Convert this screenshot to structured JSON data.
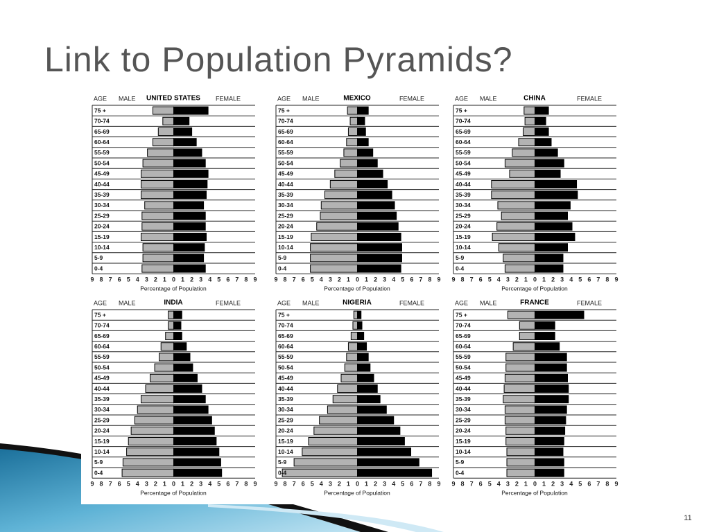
{
  "title": "Link to Population Pyramids?",
  "page_number": "11",
  "chart_data": [
    {
      "type": "bar",
      "title": "UNITED STATES",
      "category_label": "AGE",
      "x_label": "Percentage of Population",
      "categories": [
        "75 +",
        "70-74",
        "65-69",
        "60-64",
        "55-59",
        "50-54",
        "45-49",
        "40-44",
        "35-39",
        "30-34",
        "25-29",
        "20-24",
        "15-19",
        "10-14",
        "5-9",
        "0-4"
      ],
      "series": [
        {
          "name": "MALE",
          "color": "#b3b3b3",
          "values": [
            2.3,
            1.2,
            1.7,
            2.3,
            2.9,
            3.4,
            3.6,
            3.6,
            3.6,
            3.2,
            3.5,
            3.5,
            3.6,
            3.4,
            3.4,
            3.5
          ]
        },
        {
          "name": "FEMALE",
          "color": "#000000",
          "values": [
            3.8,
            1.7,
            2.0,
            2.5,
            3.1,
            3.5,
            3.8,
            3.7,
            3.6,
            3.3,
            3.5,
            3.5,
            3.6,
            3.4,
            3.3,
            3.5
          ]
        }
      ],
      "xlim": [
        -9,
        9
      ],
      "xticks": [
        {
          "value": -9,
          "label": "9"
        },
        {
          "value": -8,
          "label": "8"
        },
        {
          "value": -7,
          "label": "7"
        },
        {
          "value": -6,
          "label": "6"
        },
        {
          "value": -5,
          "label": "5"
        },
        {
          "value": -4,
          "label": "4"
        },
        {
          "value": -3,
          "label": "3"
        },
        {
          "value": -2,
          "label": "2"
        },
        {
          "value": -1,
          "label": "1"
        },
        0,
        1,
        2,
        3,
        4,
        5,
        6,
        7,
        8,
        9
      ]
    },
    {
      "type": "bar",
      "title": "MEXICO",
      "category_label": "AGE",
      "x_label": "Percentage of Population",
      "categories": [
        "75 +",
        "70-74",
        "65-69",
        "60-64",
        "55-59",
        "50-54",
        "45-49",
        "40-44",
        "35-39",
        "30-34",
        "25-29",
        "20-24",
        "15-19",
        "10-14",
        "5-9",
        "0-4"
      ],
      "series": [
        {
          "name": "MALE",
          "color": "#b3b3b3",
          "values": [
            1.1,
            0.8,
            1.0,
            1.2,
            1.5,
            1.9,
            2.5,
            3.0,
            3.6,
            4.0,
            4.1,
            4.5,
            5.1,
            5.2,
            5.2,
            5.2
          ]
        },
        {
          "name": "FEMALE",
          "color": "#000000",
          "values": [
            1.2,
            0.8,
            0.9,
            1.2,
            1.7,
            2.2,
            2.8,
            3.3,
            3.8,
            4.1,
            4.3,
            4.5,
            4.8,
            4.9,
            4.9,
            4.8
          ]
        }
      ],
      "xlim": [
        -9,
        9
      ],
      "xticks": [
        {
          "value": -9,
          "label": "9"
        },
        {
          "value": -8,
          "label": "8"
        },
        {
          "value": -7,
          "label": "7"
        },
        {
          "value": -6,
          "label": "6"
        },
        {
          "value": -5,
          "label": "5"
        },
        {
          "value": -4,
          "label": "4"
        },
        {
          "value": -3,
          "label": "3"
        },
        {
          "value": -2,
          "label": "2"
        },
        {
          "value": -1,
          "label": "1"
        },
        0,
        1,
        2,
        3,
        4,
        5,
        6,
        7,
        8,
        9
      ]
    },
    {
      "type": "bar",
      "title": "CHINA",
      "category_label": "AGE",
      "x_label": "Percentage of Population",
      "categories": [
        "75 +",
        "70-74",
        "65-69",
        "60-64",
        "55-59",
        "50-54",
        "45-49",
        "40-44",
        "35-39",
        "30-34",
        "25-29",
        "20-24",
        "15-19",
        "10-14",
        "5-9",
        "0-4"
      ],
      "series": [
        {
          "name": "MALE",
          "color": "#b3b3b3",
          "values": [
            1.2,
            1.1,
            1.3,
            1.8,
            2.5,
            3.3,
            2.8,
            4.8,
            4.8,
            4.1,
            3.7,
            4.2,
            4.7,
            4.0,
            3.5,
            3.3
          ]
        },
        {
          "name": "FEMALE",
          "color": "#000000",
          "values": [
            1.5,
            1.2,
            1.5,
            1.8,
            2.5,
            3.2,
            2.8,
            4.6,
            4.7,
            3.9,
            3.6,
            4.1,
            4.4,
            3.6,
            3.1,
            3.1
          ]
        }
      ],
      "xlim": [
        -9,
        9
      ],
      "xticks": [
        {
          "value": -9,
          "label": "9"
        },
        {
          "value": -8,
          "label": "8"
        },
        {
          "value": -7,
          "label": "7"
        },
        {
          "value": -6,
          "label": "6"
        },
        {
          "value": -5,
          "label": "5"
        },
        {
          "value": -4,
          "label": "4"
        },
        {
          "value": -3,
          "label": "3"
        },
        {
          "value": -2,
          "label": "2"
        },
        {
          "value": -1,
          "label": "1"
        },
        0,
        1,
        2,
        3,
        4,
        5,
        6,
        7,
        8,
        9
      ]
    },
    {
      "type": "bar",
      "title": "INDIA",
      "category_label": "AGE",
      "x_label": "Percentage of Population",
      "categories": [
        "75 +",
        "70-74",
        "65-69",
        "60-64",
        "55-59",
        "50-54",
        "45-49",
        "40-44",
        "35-39",
        "30-34",
        "25-29",
        "20-24",
        "15-19",
        "10-14",
        "5-9",
        "0-4"
      ],
      "series": [
        {
          "name": "MALE",
          "color": "#b3b3b3",
          "values": [
            0.6,
            0.6,
            0.9,
            1.4,
            1.6,
            2.1,
            2.6,
            3.1,
            3.6,
            4.0,
            4.3,
            4.7,
            5.0,
            5.2,
            5.6,
            5.7
          ]
        },
        {
          "name": "FEMALE",
          "color": "#000000",
          "values": [
            0.9,
            0.8,
            0.9,
            1.4,
            1.8,
            2.1,
            2.6,
            3.1,
            3.5,
            3.8,
            4.2,
            4.5,
            4.7,
            5.0,
            5.2,
            5.3
          ]
        }
      ],
      "xlim": [
        -9,
        9
      ],
      "xticks": [
        {
          "value": -9,
          "label": "9"
        },
        {
          "value": -8,
          "label": "8"
        },
        {
          "value": -7,
          "label": "7"
        },
        {
          "value": -6,
          "label": "6"
        },
        {
          "value": -5,
          "label": "5"
        },
        {
          "value": -4,
          "label": "4"
        },
        {
          "value": -3,
          "label": "3"
        },
        {
          "value": -2,
          "label": "2"
        },
        {
          "value": -1,
          "label": "1"
        },
        0,
        1,
        2,
        3,
        4,
        5,
        6,
        7,
        8,
        9
      ]
    },
    {
      "type": "bar",
      "title": "NIGERIA",
      "category_label": "AGE",
      "x_label": "Percentage of Population",
      "categories": [
        "75 +",
        "70-74",
        "65-69",
        "60-64",
        "55-59",
        "50-54",
        "45-49",
        "40-44",
        "35-39",
        "30-34",
        "25-29",
        "20-24",
        "15-19",
        "10-14",
        "5-9",
        "0-4"
      ],
      "series": [
        {
          "name": "MALE",
          "color": "#b3b3b3",
          "values": [
            0.4,
            0.5,
            0.7,
            1.0,
            1.2,
            1.4,
            1.8,
            2.2,
            2.7,
            3.3,
            4.2,
            4.8,
            5.4,
            6.1,
            7.0,
            8.3
          ]
        },
        {
          "name": "FEMALE",
          "color": "#000000",
          "values": [
            0.4,
            0.5,
            0.7,
            1.0,
            1.2,
            1.4,
            1.8,
            2.2,
            2.5,
            3.2,
            4.0,
            4.7,
            5.2,
            5.9,
            6.8,
            8.2
          ]
        }
      ],
      "xlim": [
        -9,
        9
      ],
      "xticks": [
        {
          "value": -9,
          "label": "9"
        },
        {
          "value": -8,
          "label": "8"
        },
        {
          "value": -7,
          "label": "7"
        },
        {
          "value": -6,
          "label": "6"
        },
        {
          "value": -5,
          "label": "5"
        },
        {
          "value": -4,
          "label": "4"
        },
        {
          "value": -3,
          "label": "3"
        },
        {
          "value": -2,
          "label": "2"
        },
        {
          "value": -1,
          "label": "1"
        },
        0,
        1,
        2,
        3,
        4,
        5,
        6,
        7,
        8,
        9
      ]
    },
    {
      "type": "bar",
      "title": "FRANCE",
      "category_label": "AGE",
      "x_label": "Percentage of Population",
      "categories": [
        "75 +",
        "70-74",
        "65-69",
        "60-64",
        "55-59",
        "50-54",
        "45-49",
        "40-44",
        "35-39",
        "30-34",
        "25-29",
        "20-24",
        "15-19",
        "10-14",
        "5-9",
        "0-4"
      ],
      "series": [
        {
          "name": "MALE",
          "color": "#b3b3b3",
          "values": [
            3.0,
            1.7,
            1.7,
            2.4,
            3.2,
            3.2,
            3.3,
            3.4,
            3.5,
            3.3,
            3.3,
            3.2,
            3.2,
            3.1,
            3.1,
            3.1
          ]
        },
        {
          "name": "FEMALE",
          "color": "#000000",
          "values": [
            5.4,
            2.2,
            2.2,
            2.7,
            3.5,
            3.5,
            3.6,
            3.7,
            3.7,
            3.5,
            3.4,
            3.3,
            3.2,
            3.1,
            3.2,
            3.2
          ]
        }
      ],
      "xlim": [
        -9,
        9
      ],
      "xticks": [
        {
          "value": -9,
          "label": "9"
        },
        {
          "value": -8,
          "label": "8"
        },
        {
          "value": -7,
          "label": "7"
        },
        {
          "value": -6,
          "label": "6"
        },
        {
          "value": -5,
          "label": "5"
        },
        {
          "value": -4,
          "label": "4"
        },
        {
          "value": -3,
          "label": "3"
        },
        {
          "value": -2,
          "label": "2"
        },
        {
          "value": -1,
          "label": "1"
        },
        0,
        1,
        2,
        3,
        4,
        5,
        6,
        7,
        8,
        9
      ]
    }
  ]
}
